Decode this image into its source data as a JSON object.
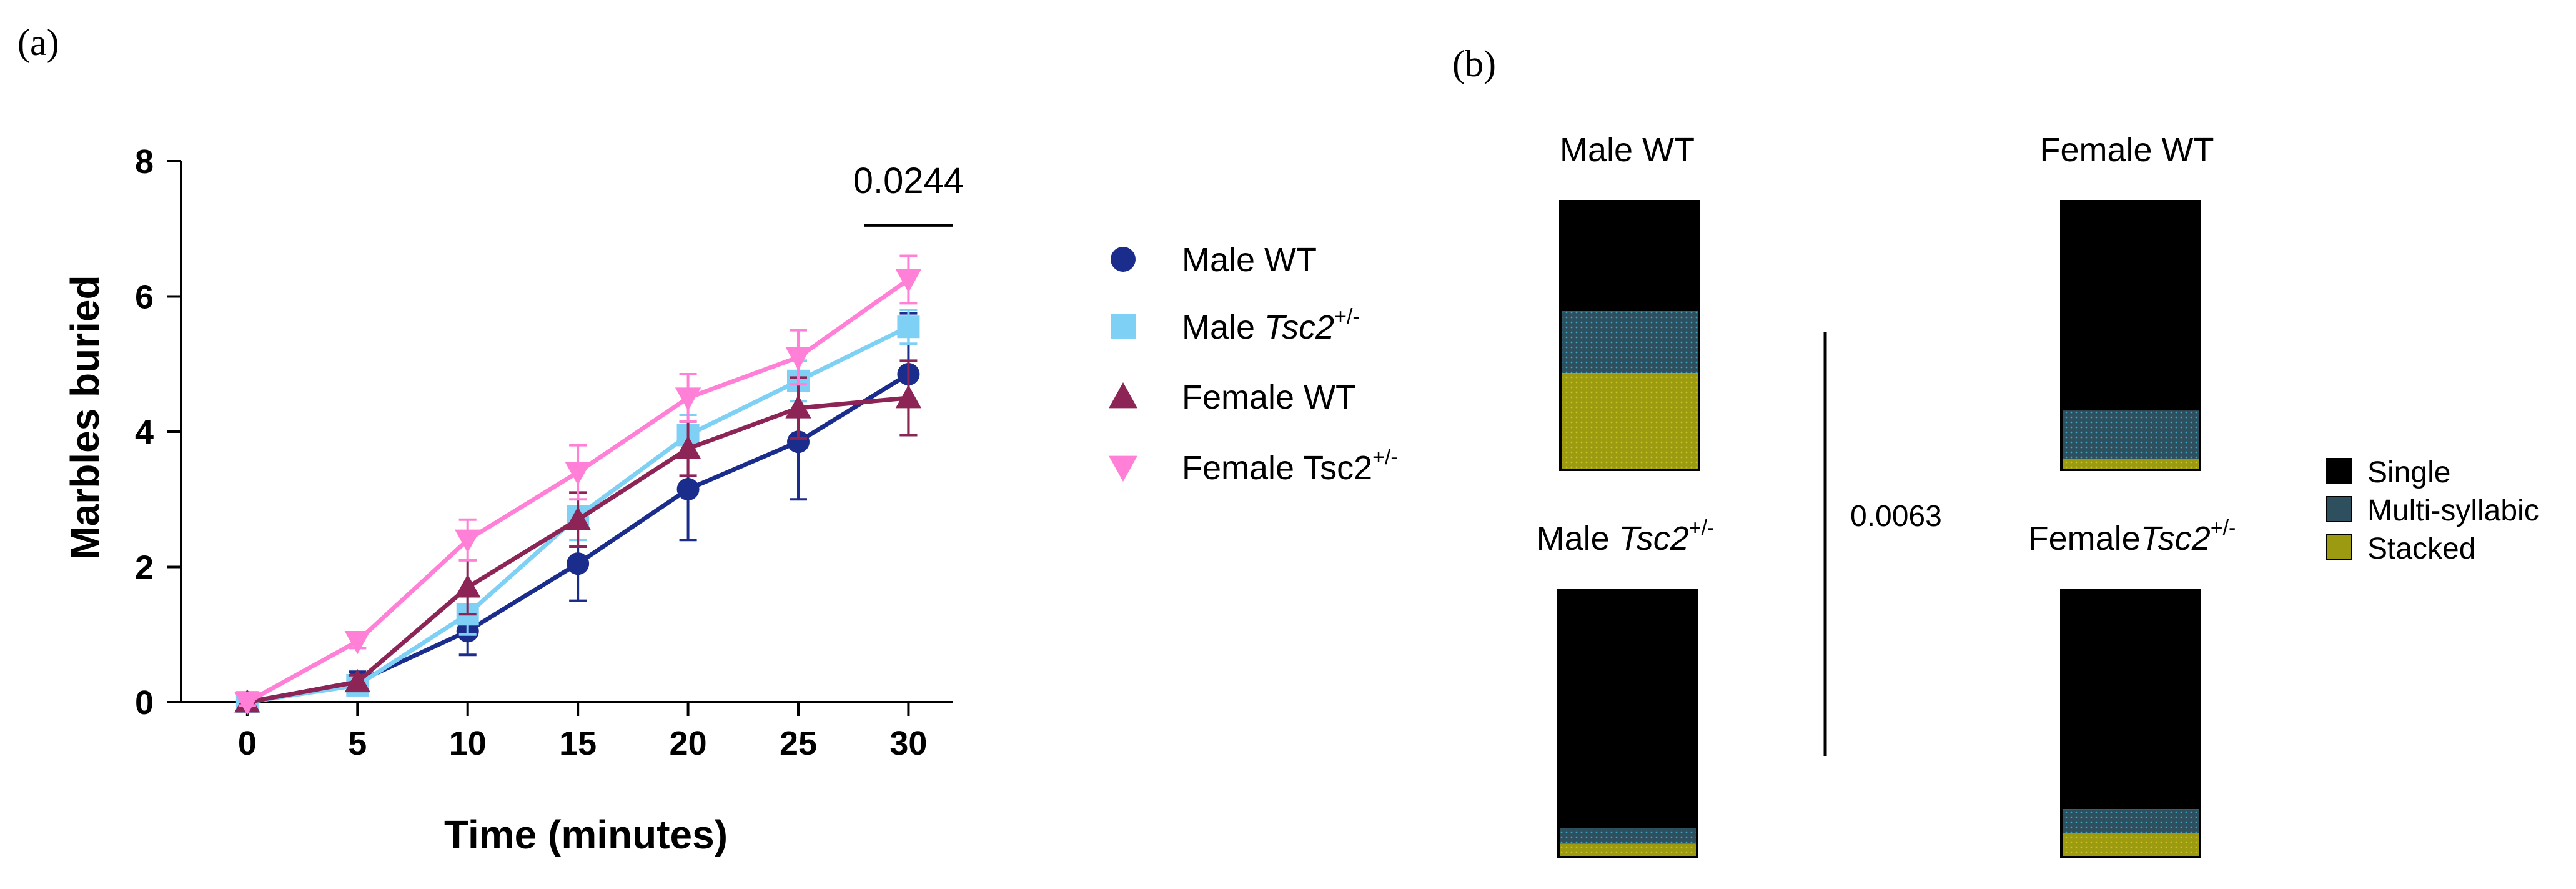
{
  "figure": {
    "panel_a_label": "(a)",
    "panel_b_label": "(b)"
  },
  "chart_data": [
    {
      "type": "line",
      "panel": "(a)",
      "xlabel": "Time (minutes)",
      "ylabel": "Marbles buried",
      "x": [
        0,
        5,
        10,
        15,
        20,
        25,
        30
      ],
      "xlim": [
        -3,
        32
      ],
      "ylim": [
        0,
        8
      ],
      "yticks": [
        0,
        2,
        4,
        6,
        8
      ],
      "grid": false,
      "legend_position": "right",
      "series": [
        {
          "name": "Male WT",
          "name_suffix": "",
          "marker": "circle",
          "color": "#1a2c8c",
          "values": [
            0.0,
            0.3,
            1.05,
            2.05,
            3.15,
            3.85,
            4.85
          ],
          "errors": [
            0.05,
            0.15,
            0.35,
            0.55,
            0.75,
            0.85,
            0.9
          ]
        },
        {
          "name": "Male ",
          "name_italic": "Tsc2",
          "name_sup": "+/-",
          "marker": "square",
          "color": "#7fd0f5",
          "values": [
            0.0,
            0.25,
            1.3,
            2.75,
            3.95,
            4.75,
            5.55
          ],
          "errors": [
            0.05,
            0.1,
            0.3,
            0.35,
            0.3,
            0.3,
            0.25
          ]
        },
        {
          "name": "Female WT",
          "name_suffix": "",
          "marker": "triangle-up",
          "color": "#8c2455",
          "values": [
            0.0,
            0.3,
            1.7,
            2.7,
            3.75,
            4.35,
            4.5
          ],
          "errors": [
            0.05,
            0.1,
            0.4,
            0.4,
            0.4,
            0.45,
            0.55
          ]
        },
        {
          "name": "Female Tsc2",
          "name_sup": "+/-",
          "marker": "triangle-down",
          "color": "#ff80d6",
          "values": [
            0.0,
            0.9,
            2.4,
            3.4,
            4.5,
            5.1,
            6.25
          ],
          "errors": [
            0.05,
            0.1,
            0.3,
            0.4,
            0.35,
            0.4,
            0.35
          ]
        }
      ],
      "annotations": [
        {
          "text": "0.0244",
          "x_start": 28,
          "x_end": 32,
          "y": 7.05
        }
      ]
    },
    {
      "type": "bar",
      "panel": "(b)",
      "stacking": "100% stacked",
      "legend": [
        {
          "label": "Single",
          "color": "#000000"
        },
        {
          "label": "Multi-syllabic",
          "color": "#2d4f5e"
        },
        {
          "label": "Stacked",
          "color": "#9c9a10"
        }
      ],
      "bars": [
        {
          "title": "Male WT",
          "title_italic": "",
          "title_sup": "",
          "single": 41,
          "multi": 23,
          "stacked": 36
        },
        {
          "title": "Female WT",
          "title_italic": "",
          "title_sup": "",
          "single": 78,
          "multi": 18,
          "stacked": 4
        },
        {
          "title": "Male ",
          "title_italic": "Tsc2",
          "title_sup": "+/-",
          "single": 89,
          "multi": 6,
          "stacked": 5
        },
        {
          "title": "Female",
          "title_italic": "Tsc2",
          "title_sup": "+/-",
          "single": 82,
          "multi": 9,
          "stacked": 9
        }
      ],
      "annotations": [
        {
          "text": "0.0063"
        }
      ]
    }
  ]
}
